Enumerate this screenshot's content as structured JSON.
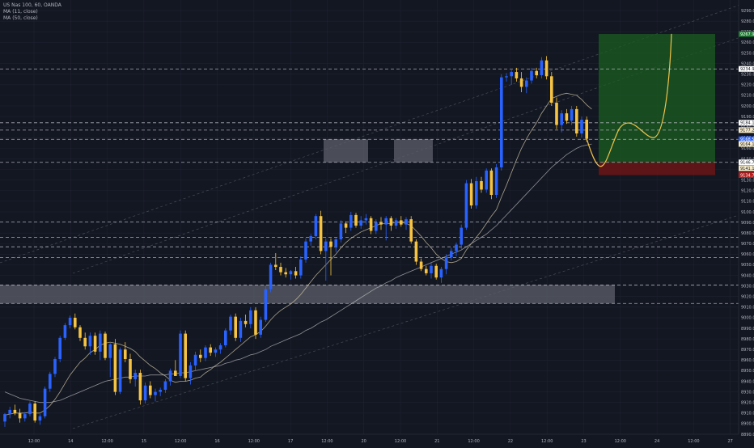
{
  "legend": {
    "symbol": "US Nas 100, 60, OANDA",
    "ma1": "MA (11, close)",
    "ma2": "MA (50, close)"
  },
  "colors": {
    "background": "#131722",
    "up": "#2962ff",
    "down": "#f6c343",
    "ma_fast": "#d1c7a6",
    "ma_slow": "#c4c4c4",
    "projection": "#f2c44a",
    "target_zone": "#1b5e20",
    "stop_zone": "#6b1515",
    "zone_box": "#5d606b"
  },
  "chart_data": {
    "type": "candlestick",
    "symbol": "US Nas 100",
    "interval": "60",
    "source": "OANDA",
    "ylim": [
      8890,
      9300
    ],
    "y_ticks": [
      8890.0,
      8900.0,
      8910.0,
      8920.0,
      8930.0,
      8940.0,
      8950.0,
      8960.0,
      8970.0,
      8980.0,
      8990.0,
      9000.0,
      9010.0,
      9020.0,
      9030.0,
      9040.0,
      9050.0,
      9060.0,
      9070.0,
      9080.0,
      9090.0,
      9100.0,
      9110.0,
      9120.0,
      9130.0,
      9140.0,
      9150.0,
      9160.0,
      9170.0,
      9180.0,
      9190.0,
      9200.0,
      9210.0,
      9220.0,
      9230.0,
      9240.0,
      9250.0,
      9260.0,
      9270.0,
      9280.0,
      9290.0
    ],
    "x_ticks": [
      "12:00",
      "14",
      "12:00",
      "15",
      "12:00",
      "16",
      "12:00",
      "17",
      "12:00",
      "20",
      "12:00",
      "21",
      "12:00",
      "22",
      "12:00",
      "23",
      "12:00",
      "24",
      "12:00",
      "27"
    ],
    "price_labels": [
      {
        "text": "9267.9",
        "value": 9267.9,
        "kind": "target"
      },
      {
        "text": "9234.9",
        "value": 9234.9,
        "kind": "level"
      },
      {
        "text": "9184.1",
        "value": 9184.1,
        "kind": "level"
      },
      {
        "text": "9177.2",
        "value": 9177.2,
        "kind": "ma"
      },
      {
        "text": "9168.5",
        "value": 9168.5,
        "kind": "current"
      },
      {
        "text": "9164.1",
        "value": 9164.1,
        "kind": "ma"
      },
      {
        "text": "9146.7",
        "value": 9146.7,
        "kind": "level"
      },
      {
        "text": "9141.1",
        "value": 9141.1,
        "kind": "ma"
      },
      {
        "text": "9134.7",
        "value": 9134.7,
        "kind": "stop"
      }
    ],
    "horizontal_levels": [
      9234.9,
      9184.1,
      9177.2,
      9168.5,
      9146.7,
      9090.3,
      9076.0,
      9067.0,
      9056.8,
      9030.9,
      9013.5
    ],
    "ohlc": [
      [
        8902,
        8910,
        8897,
        8909
      ],
      [
        8909,
        8916,
        8905,
        8913
      ],
      [
        8913,
        8918,
        8908,
        8910
      ],
      [
        8910,
        8914,
        8901,
        8905
      ],
      [
        8905,
        8911,
        8902,
        8909
      ],
      [
        8909,
        8921,
        8907,
        8919
      ],
      [
        8919,
        8921,
        8901,
        8903
      ],
      [
        8903,
        8909,
        8899,
        8907
      ],
      [
        8907,
        8935,
        8905,
        8933
      ],
      [
        8933,
        8949,
        8930,
        8947
      ],
      [
        8947,
        8963,
        8944,
        8961
      ],
      [
        8961,
        8983,
        8958,
        8981
      ],
      [
        8981,
        8995,
        8979,
        8993
      ],
      [
        8993,
        9002,
        8990,
        9000
      ],
      [
        9000,
        9004,
        8989,
        8991
      ],
      [
        8991,
        8993,
        8978,
        8981
      ],
      [
        8981,
        8986,
        8970,
        8973
      ],
      [
        8973,
        8986,
        8965,
        8983
      ],
      [
        8983,
        8986,
        8965,
        8968
      ],
      [
        8968,
        8988,
        8960,
        8985
      ],
      [
        8985,
        8987,
        8960,
        8962
      ],
      [
        8962,
        8976,
        8944,
        8975
      ],
      [
        8975,
        8980,
        8927,
        8930
      ],
      [
        8930,
        8972,
        8928,
        8970
      ],
      [
        8970,
        8977,
        8958,
        8961
      ],
      [
        8961,
        8966,
        8938,
        8942
      ],
      [
        8942,
        8951,
        8935,
        8948
      ],
      [
        8948,
        8951,
        8918,
        8922
      ],
      [
        8922,
        8939,
        8919,
        8936
      ],
      [
        8936,
        8940,
        8924,
        8927
      ],
      [
        8927,
        8933,
        8921,
        8930
      ],
      [
        8930,
        8934,
        8926,
        8932
      ],
      [
        8932,
        8942,
        8929,
        8940
      ],
      [
        8940,
        8952,
        8936,
        8950
      ],
      [
        8950,
        8960,
        8947,
        8945
      ],
      [
        8945,
        8988,
        8943,
        8985
      ],
      [
        8985,
        8988,
        8940,
        8943
      ],
      [
        8943,
        8958,
        8937,
        8955
      ],
      [
        8955,
        8968,
        8950,
        8965
      ],
      [
        8965,
        8970,
        8958,
        8962
      ],
      [
        8962,
        8974,
        8959,
        8972
      ],
      [
        8972,
        8975,
        8964,
        8967
      ],
      [
        8967,
        8972,
        8963,
        8970
      ],
      [
        8970,
        8976,
        8966,
        8974
      ],
      [
        8974,
        8990,
        8972,
        8988
      ],
      [
        8988,
        9003,
        8984,
        9001
      ],
      [
        9001,
        9004,
        8978,
        8981
      ],
      [
        8981,
        9000,
        8977,
        8997
      ],
      [
        8997,
        9003,
        8991,
        8994
      ],
      [
        8994,
        9010,
        8990,
        9007
      ],
      [
        9007,
        9010,
        8980,
        8984
      ],
      [
        8984,
        9001,
        8981,
        8998
      ],
      [
        8998,
        9030,
        8996,
        9027
      ],
      [
        9027,
        9052,
        9024,
        9050
      ],
      [
        9050,
        9061,
        9045,
        9048
      ],
      [
        9048,
        9052,
        9040,
        9043
      ],
      [
        9043,
        9047,
        9038,
        9041
      ],
      [
        9041,
        9045,
        9036,
        9044
      ],
      [
        9044,
        9048,
        9037,
        9040
      ],
      [
        9040,
        9058,
        9037,
        9055
      ],
      [
        9055,
        9075,
        9052,
        9072
      ],
      [
        9072,
        9079,
        9068,
        9077
      ],
      [
        9077,
        9098,
        9074,
        9096
      ],
      [
        9096,
        9101,
        9060,
        9063
      ],
      [
        9063,
        9075,
        9035,
        9072
      ],
      [
        9072,
        9075,
        9040,
        9067
      ],
      [
        9067,
        9076,
        9062,
        9074
      ],
      [
        9074,
        9092,
        9071,
        9089
      ],
      [
        9089,
        9091,
        9080,
        9085
      ],
      [
        9085,
        9100,
        9082,
        9097
      ],
      [
        9097,
        9099,
        9085,
        9087
      ],
      [
        9087,
        9096,
        9084,
        9092
      ],
      [
        9092,
        9098,
        9088,
        9094
      ],
      [
        9094,
        9096,
        9079,
        9082
      ],
      [
        9082,
        9093,
        9079,
        9090
      ],
      [
        9090,
        9095,
        9083,
        9088
      ],
      [
        9088,
        9096,
        9073,
        9094
      ],
      [
        9094,
        9096,
        9082,
        9087
      ],
      [
        9087,
        9094,
        9084,
        9092
      ],
      [
        9092,
        9096,
        9086,
        9088
      ],
      [
        9088,
        9095,
        9083,
        9093
      ],
      [
        9093,
        9096,
        9070,
        9072
      ],
      [
        9072,
        9074,
        9050,
        9053
      ],
      [
        9053,
        9056,
        9044,
        9046
      ],
      [
        9046,
        9049,
        9040,
        9042
      ],
      [
        9042,
        9052,
        9037,
        9049
      ],
      [
        9049,
        9051,
        9036,
        9038
      ],
      [
        9038,
        9048,
        9033,
        9046
      ],
      [
        9046,
        9060,
        9041,
        9057
      ],
      [
        9057,
        9066,
        9054,
        9063
      ],
      [
        9063,
        9071,
        9058,
        9069
      ],
      [
        9069,
        9088,
        9065,
        9085
      ],
      [
        9085,
        9130,
        9083,
        9127
      ],
      [
        9127,
        9131,
        9103,
        9106
      ],
      [
        9106,
        9133,
        9103,
        9129
      ],
      [
        9129,
        9133,
        9118,
        9121
      ],
      [
        9121,
        9141,
        9118,
        9139
      ],
      [
        9139,
        9141,
        9112,
        9116
      ],
      [
        9116,
        9145,
        9113,
        9142
      ],
      [
        9142,
        9230,
        9139,
        9227
      ],
      [
        9227,
        9231,
        9223,
        9228
      ],
      [
        9228,
        9234,
        9220,
        9232
      ],
      [
        9232,
        9236,
        9223,
        9226
      ],
      [
        9226,
        9232,
        9213,
        9218
      ],
      [
        9218,
        9227,
        9212,
        9224
      ],
      [
        9224,
        9236,
        9221,
        9233
      ],
      [
        9233,
        9236,
        9226,
        9229
      ],
      [
        9229,
        9246,
        9226,
        9243
      ],
      [
        9243,
        9247,
        9225,
        9228
      ],
      [
        9228,
        9232,
        9200,
        9203
      ],
      [
        9203,
        9208,
        9178,
        9182
      ],
      [
        9182,
        9196,
        9175,
        9193
      ],
      [
        9193,
        9197,
        9183,
        9186
      ],
      [
        9186,
        9200,
        9182,
        9197
      ],
      [
        9197,
        9200,
        9171,
        9174
      ],
      [
        9174,
        9190,
        9170,
        9187
      ],
      [
        9187,
        9190,
        9166,
        9169
      ]
    ],
    "ma_fast": [
      8908,
      8909,
      8910,
      8910,
      8910,
      8911,
      8910,
      8910,
      8913,
      8917,
      8923,
      8930,
      8938,
      8946,
      8952,
      8958,
      8962,
      8967,
      8970,
      8974,
      8976,
      8977,
      8976,
      8975,
      8973,
      8971,
      8968,
      8963,
      8959,
      8955,
      8952,
      8948,
      8945,
      8941,
      8939,
      8940,
      8940,
      8941,
      8943,
      8944,
      8948,
      8951,
      8955,
      8958,
      8962,
      8966,
      8970,
      8974,
      8978,
      8982,
      8984,
      8987,
      8992,
      8998,
      9003,
      9007,
      9010,
      9013,
      9017,
      9022,
      9028,
      9034,
      9040,
      9045,
      9050,
      9055,
      9060,
      9066,
      9071,
      9075,
      9078,
      9081,
      9083,
      9085,
      9087,
      9089,
      9089,
      9089,
      9090,
      9090,
      9089,
      9087,
      9082,
      9077,
      9071,
      9066,
      9060,
      9056,
      9053,
      9052,
      9053,
      9056,
      9064,
      9070,
      9076,
      9082,
      9089,
      9096,
      9102,
      9114,
      9125,
      9137,
      9149,
      9160,
      9169,
      9177,
      9184,
      9193,
      9200,
      9207,
      9209,
      9211,
      9212,
      9211,
      9210,
      9206,
      9201,
      9197
    ],
    "ma_slow": [
      8930,
      8928,
      8926,
      8924,
      8923,
      8922,
      8921,
      8920,
      8920,
      8920,
      8921,
      8922,
      8924,
      8926,
      8928,
      8930,
      8932,
      8934,
      8936,
      8938,
      8940,
      8941,
      8942,
      8943,
      8944,
      8944,
      8945,
      8945,
      8945,
      8946,
      8946,
      8946,
      8946,
      8947,
      8947,
      8948,
      8948,
      8949,
      8950,
      8951,
      8952,
      8953,
      8954,
      8955,
      8957,
      8958,
      8960,
      8961,
      8963,
      8965,
      8966,
      8968,
      8970,
      8973,
      8975,
      8977,
      8979,
      8981,
      8983,
      8985,
      8988,
      8990,
      8993,
      8996,
      8998,
      9001,
      9004,
      9007,
      9010,
      9013,
      9016,
      9019,
      9022,
      9025,
      9028,
      9030,
      9033,
      9035,
      9038,
      9040,
      9042,
      9044,
      9046,
      9048,
      9050,
      9052,
      9054,
      9056,
      9058,
      9060,
      9062,
      9064,
      9067,
      9070,
      9073,
      9076,
      9079,
      9083,
      9087,
      9092,
      9097,
      9102,
      9107,
      9112,
      9117,
      9122,
      9127,
      9132,
      9137,
      9142,
      9146,
      9150,
      9154,
      9157,
      9160,
      9162,
      9163,
      9164
    ],
    "zones": [
      {
        "type": "supply_demand",
        "y1": 9013.5,
        "y2": 9030.9
      },
      {
        "type": "supply_demand",
        "y1": 9146.7,
        "y2": 9168.5
      },
      {
        "type": "supply_demand",
        "y1": 9146.7,
        "y2": 9168.5
      }
    ],
    "position": {
      "entry": 9146.7,
      "target": 9267.9,
      "stop": 9134.7
    }
  }
}
